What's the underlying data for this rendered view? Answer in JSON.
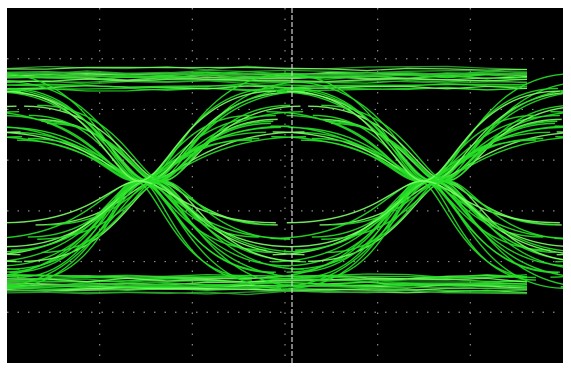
{
  "app": {
    "kind": "oscilloscope",
    "view": "eye-diagram"
  },
  "colors": {
    "background": "#000000",
    "frame": "#ffffff",
    "trace": "#27e027",
    "trace_bright": "#7dff66",
    "trace_dim": "#2fae2f",
    "graticule": "#8a8a8a",
    "center_line": "#d0d0d0"
  },
  "graticule": {
    "divisions_x": 6,
    "divisions_y": 7,
    "subdivisions": 5,
    "center_vertical_line": true
  },
  "eye": {
    "unit_intervals_shown": 2,
    "crossings_per_ui": 1,
    "levels": [
      "high",
      "low"
    ],
    "trace_count": 22
  },
  "icons": {
    "trace": "waveform-icon"
  }
}
